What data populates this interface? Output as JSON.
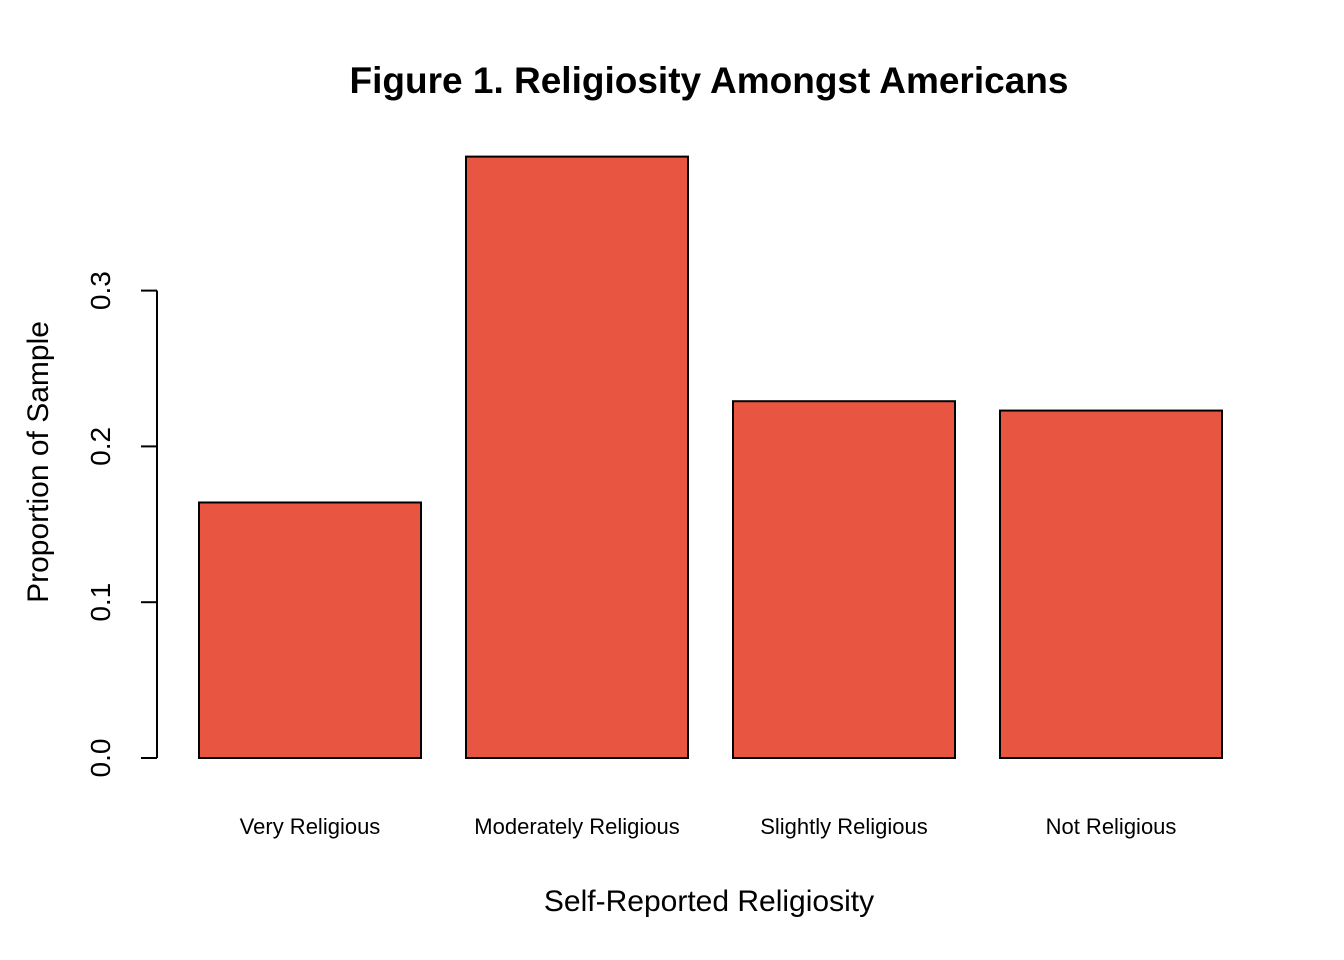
{
  "chart_data": {
    "type": "bar",
    "title": "Figure 1. Religiosity Amongst Americans",
    "xlabel": "Self-Reported Religiosity",
    "ylabel": "Proportion of Sample",
    "categories": [
      "Very Religious",
      "Moderately Religious",
      "Slightly Religious",
      "Not Religious"
    ],
    "values": [
      0.164,
      0.386,
      0.229,
      0.223
    ],
    "yticks": [
      "0.0",
      "0.1",
      "0.2",
      "0.3"
    ],
    "ytick_values": [
      0,
      0.1,
      0.2,
      0.3
    ],
    "ylim": [
      0,
      0.386
    ],
    "bar_color": "#E85642",
    "grid": false,
    "legend": "none"
  }
}
